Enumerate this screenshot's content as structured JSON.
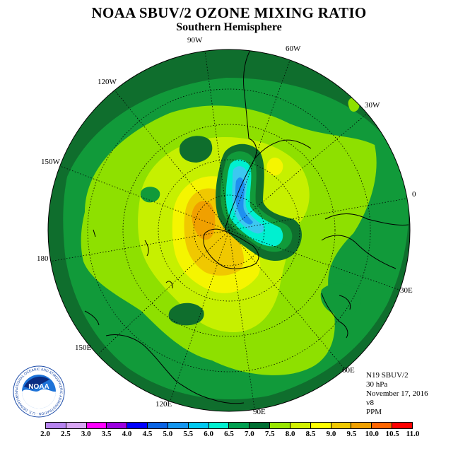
{
  "header": {
    "title": "NOAA SBUV/2 OZONE MIXING RATIO",
    "subtitle": "Southern Hemisphere"
  },
  "longitudes": {
    "l90w": "90W",
    "l60w": "60W",
    "l30w": "30W",
    "l120w": "120W",
    "l150w": "150W",
    "l0": "0",
    "l180": "180",
    "l30e": "30E",
    "l150e": "150E",
    "l60e": "60E",
    "l120e": "120E",
    "l90e": "90E"
  },
  "info": {
    "satellite": "N19 SBUV/2",
    "level": "30 hPa",
    "date": "November 17, 2016",
    "version": "v8",
    "units": "PPM"
  },
  "logo": {
    "text": "NOAA",
    "ring_text": "NATIONAL OCEANIC AND ATMOSPHERIC ADMINISTRATION · U.S. DEPARTMENT OF COMMERCE"
  },
  "colorbar": {
    "ticks": [
      "2.0",
      "2.5",
      "3.0",
      "3.5",
      "4.0",
      "4.5",
      "5.0",
      "5.5",
      "6.0",
      "6.5",
      "7.0",
      "7.5",
      "8.0",
      "8.5",
      "9.0",
      "9.5",
      "10.0",
      "10.5",
      "11.0"
    ],
    "colors": [
      "#b784f0",
      "#d9a6f4",
      "#ff00ff",
      "#9b00e0",
      "#0000ff",
      "#0a64e6",
      "#1496f0",
      "#00c8f0",
      "#00f0d0",
      "#00a050",
      "#006f32",
      "#98e600",
      "#d2f000",
      "#ffff00",
      "#f0c800",
      "#f0a000",
      "#ff6400",
      "#ff0000",
      "#8b4513"
    ]
  },
  "map_colors": {
    "dark_green": "#0f6e2d",
    "mid_green": "#119a3a",
    "light_green": "#8ee000",
    "yellow_green": "#c6f000",
    "yellow": "#f5f500",
    "gold": "#f0c800",
    "orange": "#f0a000",
    "teal": "#00f0d0",
    "cyan": "#3cc8f0",
    "blue": "#1e90f0"
  }
}
